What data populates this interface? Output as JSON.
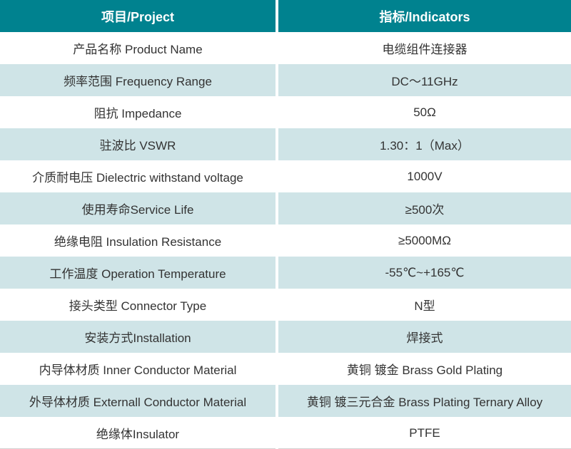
{
  "table": {
    "header": {
      "project": "项目/Project",
      "indicators": "指标/Indicators"
    },
    "rows": [
      {
        "project": "产品名称 Product Name",
        "indicator": "电缆组件连接器"
      },
      {
        "project": "频率范围 Frequency Range",
        "indicator": "DC～11GHz"
      },
      {
        "project": "阻抗 Impedance",
        "indicator": "50Ω"
      },
      {
        "project": "驻波比 VSWR",
        "indicator": "1.30：1（Max）"
      },
      {
        "project": "介质耐电压 Dielectric withstand voltage",
        "indicator": "1000V"
      },
      {
        "project": "使用寿命Service Life",
        "indicator": "≥500次"
      },
      {
        "project": "绝缘电阻 Insulation Resistance",
        "indicator": "≥5000MΩ"
      },
      {
        "project": "工作温度 Operation Temperature",
        "indicator": "-55℃~+165℃"
      },
      {
        "project": "接头类型 Connector Type",
        "indicator": "N型"
      },
      {
        "project": "安装方式Installation",
        "indicator": "焊接式"
      },
      {
        "project": "内导体材质 Inner Conductor Material",
        "indicator": "黄铜 镀金 Brass Gold Plating"
      },
      {
        "project": "外导体材质 Externall Conductor Material",
        "indicator": "黄铜 镀三元合金 Brass Plating Ternary Alloy"
      },
      {
        "project": "绝缘体Insulator",
        "indicator": "PTFE"
      }
    ]
  },
  "colors": {
    "header_bg": "#00828F",
    "row_alt_bg": "#CFE4E7",
    "divider": "#FFFFFF",
    "text": "#333333",
    "header_text": "#FFFFFF"
  }
}
